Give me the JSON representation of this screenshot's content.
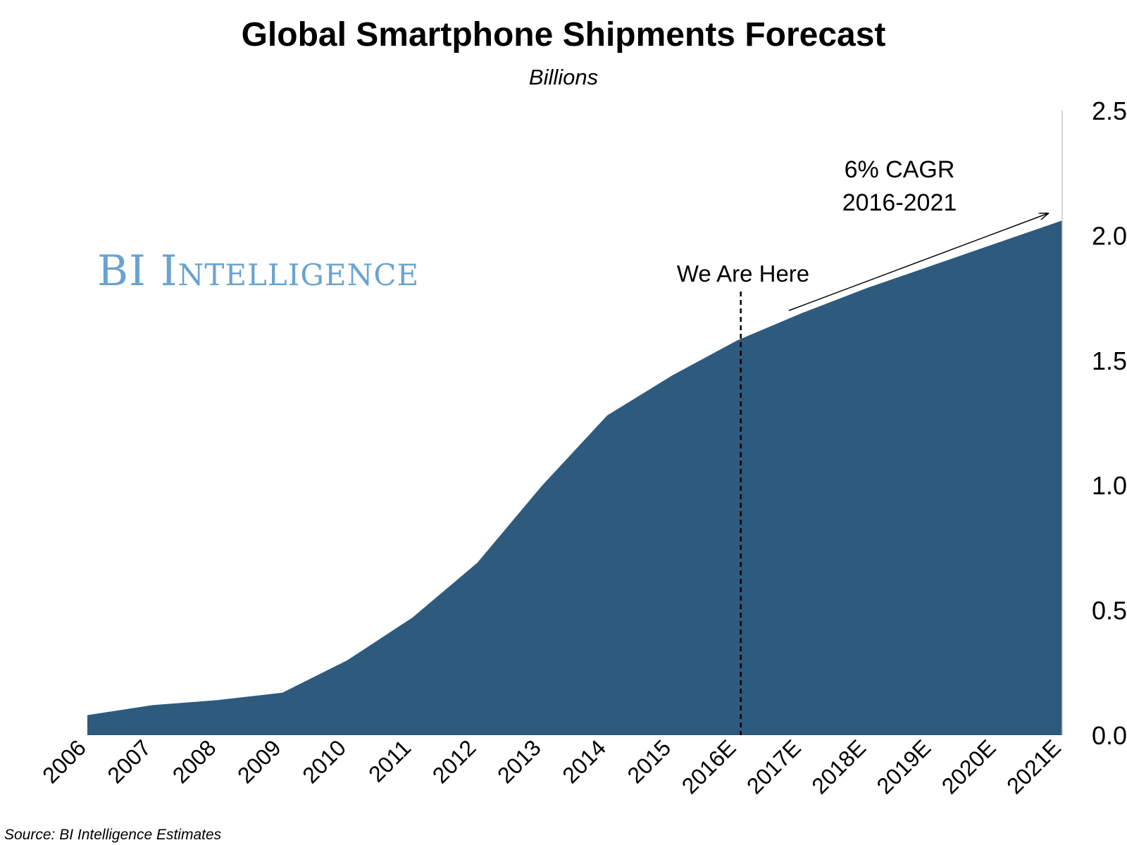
{
  "title": "Global Smartphone Shipments Forecast",
  "subtitle": "Billions",
  "watermark": "BI Intelligence",
  "source": "Source: BI Intelligence Estimates",
  "colors": {
    "area": "#2e5a7e",
    "watermark": "#6aa3cf",
    "axis": "#c8c8c8"
  },
  "chart_data": {
    "type": "area",
    "categories": [
      "2006",
      "2007",
      "2008",
      "2009",
      "2010",
      "2011",
      "2012",
      "2013",
      "2014",
      "2015",
      "2016E",
      "2017E",
      "2018E",
      "2019E",
      "2020E",
      "2021E"
    ],
    "values": [
      0.08,
      0.12,
      0.14,
      0.17,
      0.3,
      0.47,
      0.69,
      1.0,
      1.28,
      1.44,
      1.58,
      1.69,
      1.79,
      1.88,
      1.97,
      2.06
    ],
    "ylim": [
      0,
      2.5
    ],
    "yticks": [
      "0.0",
      "0.5",
      "1.0",
      "1.5",
      "2.0",
      "2.5"
    ],
    "yaxis_side": "right",
    "grid": false,
    "annotations": {
      "marker_label": "We Are Here",
      "marker_category": "2016E",
      "cagr_line1": "6% CAGR",
      "cagr_line2": "2016-2021"
    }
  }
}
